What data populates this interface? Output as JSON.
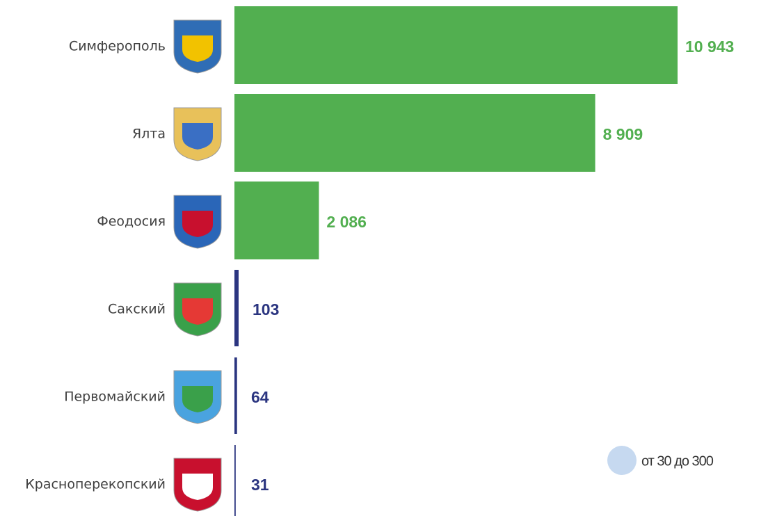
{
  "chart_data": {
    "type": "bar",
    "orientation": "horizontal",
    "categories": [
      "Симферополь",
      "Ялта",
      "Феодосия",
      "Сакский",
      "Первомайский",
      "Красноперекопский"
    ],
    "values": [
      10943,
      8909,
      2086,
      103,
      64,
      31
    ],
    "value_labels": [
      "10 943",
      "8 909",
      "2 086",
      "103",
      "64",
      "31"
    ],
    "colors": [
      "#52af50",
      "#52af50",
      "#52af50",
      "#2b3580",
      "#2b3580",
      "#2b3580"
    ],
    "legend": {
      "label": "от 30 до 300",
      "color": "#c6d9f0"
    }
  }
}
